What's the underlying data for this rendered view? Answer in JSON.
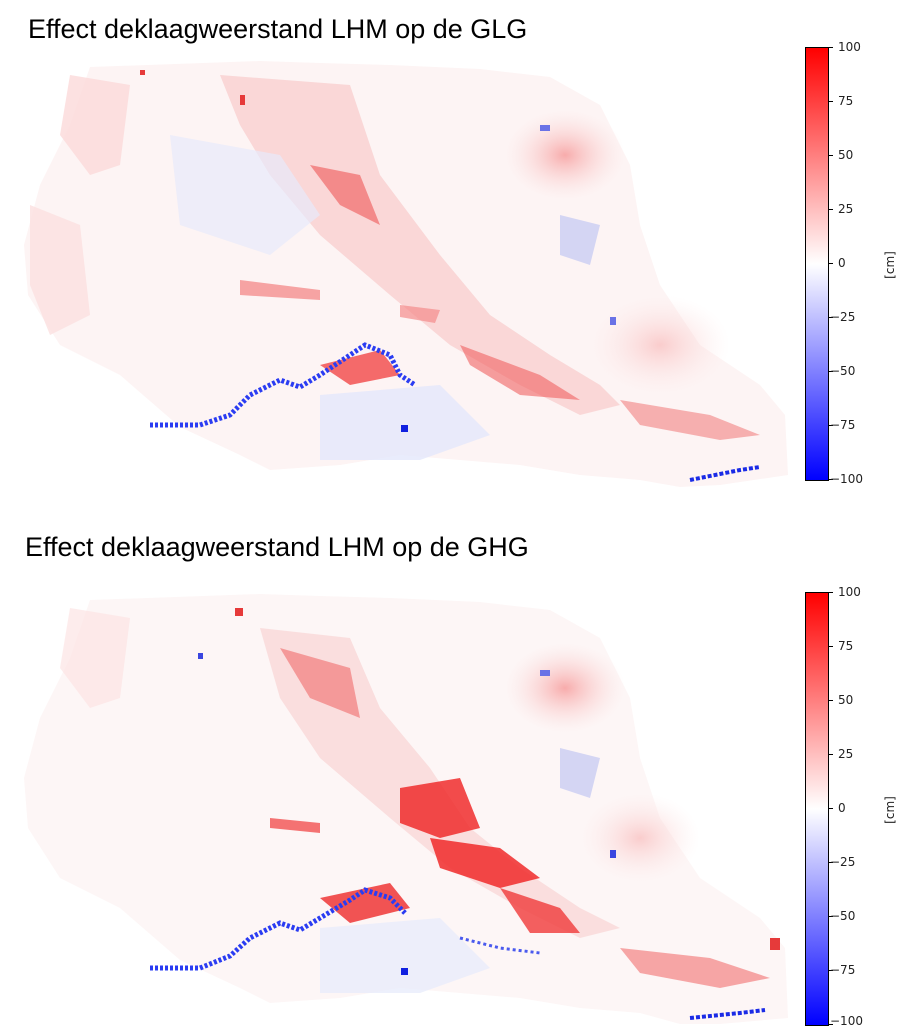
{
  "panels": [
    {
      "title": "Effect deklaagweerstand LHM op de GLG",
      "colorbar": {
        "ticks": [
          "100",
          "75",
          "50",
          "25",
          "0",
          "−25",
          "−50",
          "−75",
          "−100"
        ],
        "unit": "[cm]",
        "range": [
          -100,
          100
        ],
        "colors": {
          "max": "#ff0000",
          "mid": "#ffffff",
          "min": "#0000ff"
        }
      }
    },
    {
      "title": "Effect deklaagweerstand LHM op de GHG",
      "colorbar": {
        "ticks": [
          "100",
          "75",
          "50",
          "25",
          "0",
          "−25",
          "−50",
          "−75",
          "−100"
        ],
        "unit": "[cm]",
        "range": [
          -100,
          100
        ],
        "colors": {
          "max": "#ff0000",
          "mid": "#ffffff",
          "min": "#0000ff"
        }
      }
    }
  ]
}
